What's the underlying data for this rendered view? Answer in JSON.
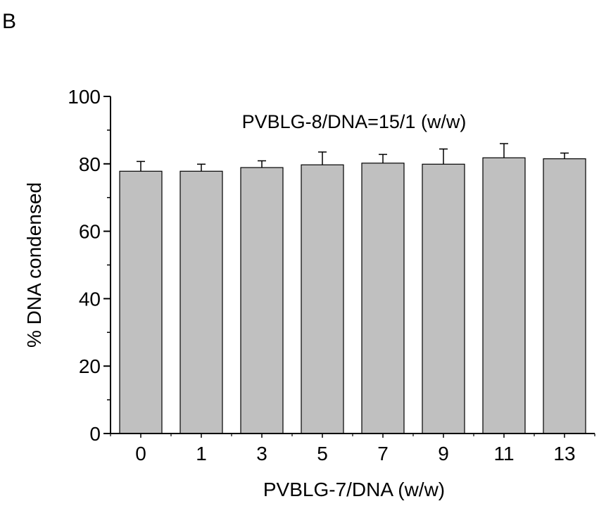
{
  "panel_label": "B",
  "chart_data": {
    "type": "bar",
    "title": "PVBLG-8/DNA=15/1 (w/w)",
    "xlabel": "PVBLG-7/DNA (w/w)",
    "ylabel": "% DNA condensed",
    "categories": [
      "0",
      "1",
      "3",
      "5",
      "7",
      "9",
      "11",
      "13"
    ],
    "values": [
      77.8,
      77.8,
      78.9,
      79.7,
      80.2,
      79.9,
      81.8,
      81.5
    ],
    "errors": [
      2.9,
      2.1,
      2.0,
      3.8,
      2.6,
      4.5,
      4.2,
      1.7
    ],
    "ylim": [
      0,
      100
    ],
    "yticks": [
      "0",
      "20",
      "40",
      "60",
      "80",
      "100"
    ],
    "grid": false,
    "colors": {
      "bar_fill": "#c0c0c0",
      "bar_stroke": "#000000",
      "axis": "#000000"
    }
  }
}
